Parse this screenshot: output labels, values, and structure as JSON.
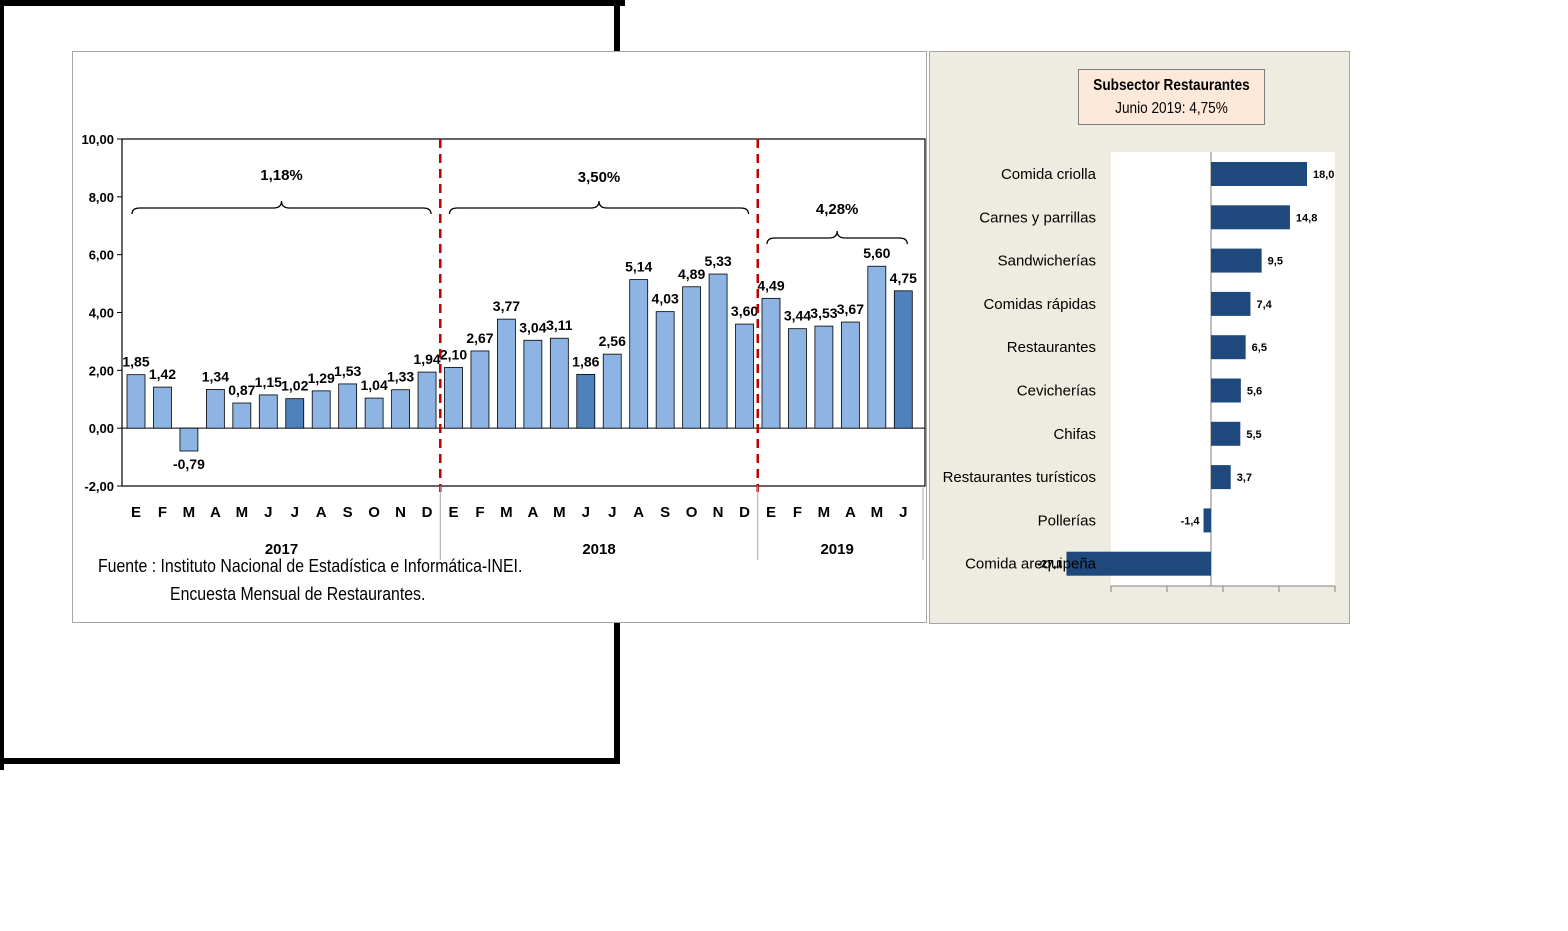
{
  "left_chart": {
    "source_line1": "Fuente : Instituto Nacional de Estadística e Informática-INEI.",
    "source_line2": "Encuesta Mensual de  Restaurantes.",
    "y_ticks": [
      "10,00",
      "8,00",
      "6,00",
      "4,00",
      "2,00",
      "0,00",
      "-2,00"
    ],
    "years": [
      "2017",
      "2018",
      "2019"
    ],
    "averages": [
      "1,18%",
      "3,50%",
      "4,28%"
    ],
    "colors": {
      "bar": "#8db4e2",
      "highlight": "#4f81bd",
      "divider": "#c00000"
    }
  },
  "right_chart": {
    "title_line1": "Subsector Restaurantes",
    "title_line2": "Junio 2019: 4,75%",
    "colors": {
      "bar": "#1f497d"
    }
  },
  "chart_data": [
    {
      "type": "bar",
      "categories": [
        "E",
        "F",
        "M",
        "A",
        "M",
        "J",
        "J",
        "A",
        "S",
        "O",
        "N",
        "D",
        "E",
        "F",
        "M",
        "A",
        "M",
        "J",
        "J",
        "A",
        "S",
        "O",
        "N",
        "D",
        "E",
        "F",
        "M",
        "A",
        "M",
        "J"
      ],
      "values": [
        1.85,
        1.42,
        -0.79,
        1.34,
        0.87,
        1.15,
        1.02,
        1.29,
        1.53,
        1.04,
        1.33,
        1.94,
        2.1,
        2.67,
        3.77,
        3.04,
        3.11,
        1.86,
        2.56,
        5.14,
        4.03,
        4.89,
        5.33,
        3.6,
        4.49,
        3.44,
        3.53,
        3.67,
        5.6,
        4.75
      ],
      "labels": [
        "1,85",
        "1,42",
        "-0,79",
        "1,34",
        "0,87",
        "1,15",
        "1,02",
        "1,29",
        "1,53",
        "1,04",
        "1,33",
        "1,94",
        "2,10",
        "2,67",
        "3,77",
        "3,04",
        "3,11",
        "1,86",
        "2,56",
        "5,14",
        "4,03",
        "4,89",
        "5,33",
        "3,60",
        "4,49",
        "3,44",
        "3,53",
        "3,67",
        "5,60",
        "4,75"
      ],
      "highlighted": [
        6,
        17,
        29
      ],
      "groups": [
        {
          "year": "2017",
          "start": 0,
          "end": 11,
          "average": "1,18%"
        },
        {
          "year": "2018",
          "start": 12,
          "end": 23,
          "average": "3,50%"
        },
        {
          "year": "2019",
          "start": 24,
          "end": 29,
          "average": "4,28%"
        }
      ],
      "ylim": [
        -2,
        10
      ],
      "yticks": [
        10,
        8,
        6,
        4,
        2,
        0,
        -2
      ],
      "grid": false
    },
    {
      "type": "bar",
      "orientation": "horizontal",
      "title": "Subsector Restaurantes",
      "subtitle": "Junio 2019: 4,75%",
      "categories": [
        "Comida criolla",
        "Carnes y parrillas",
        "Sandwicherías",
        "Comidas rápidas",
        "Restaurantes",
        "Cevicherías",
        "Chifas",
        "Restaurantes turísticos",
        "Pollerías",
        "Comida arequipeña"
      ],
      "values": [
        18.0,
        14.8,
        9.5,
        7.4,
        6.5,
        5.6,
        5.5,
        3.7,
        -1.4,
        -27.1
      ],
      "labels": [
        "18,0",
        "14,8",
        "9,5",
        "7,4",
        "6,5",
        "5,6",
        "5,5",
        "3,7",
        "-1,4",
        "-27,1"
      ]
    }
  ]
}
